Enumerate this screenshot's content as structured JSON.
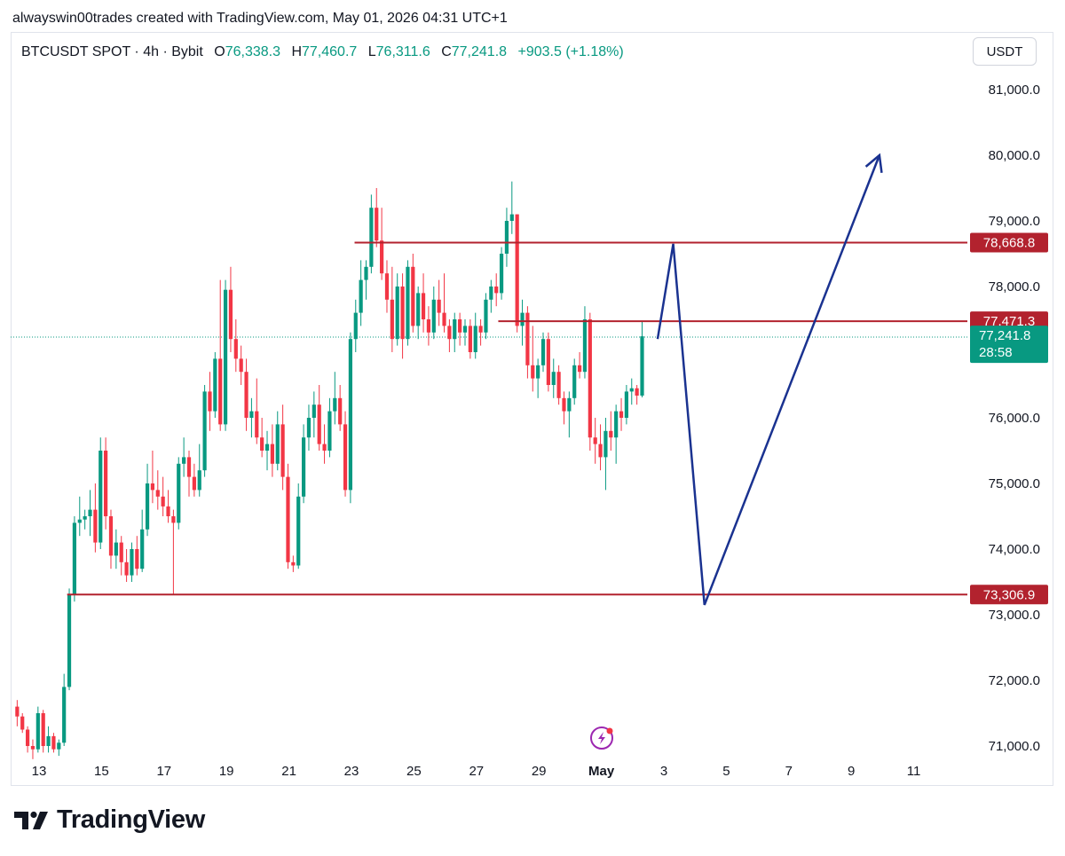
{
  "credit_line": "alwayswin00trades created with TradingView.com, May 01, 2026 04:31 UTC+1",
  "legend": {
    "symbol": "BTCUSDT SPOT · 4h · Bybit",
    "open_label": "O",
    "open": "76,338.3",
    "high_label": "H",
    "high": "77,460.7",
    "low_label": "L",
    "low": "76,311.6",
    "close_label": "C",
    "close": "77,241.8",
    "change": "+903.5 (+1.18%)"
  },
  "currency_button": "USDT",
  "brand": "TradingView",
  "colors": {
    "up": "#089981",
    "down": "#f23645",
    "level_line": "#b2222e",
    "projection": "#1a3290",
    "current_tag": "#089981"
  },
  "icons": [
    "tradingview-logo-icon",
    "flash-event-icon"
  ],
  "chart_data": {
    "type": "candlestick",
    "symbol": "BTCUSDT SPOT",
    "interval": "4h",
    "ylim": [
      70650,
      81700
    ],
    "y_ticks": [
      "81,000.0",
      "80,000.0",
      "79,000.0",
      "78,000.0",
      "76,000.0",
      "75,000.0",
      "74,000.0",
      "73,000.0",
      "72,000.0",
      "71,000.0"
    ],
    "y_tick_values": [
      81000,
      80000,
      79000,
      78000,
      76000,
      75000,
      74000,
      73000,
      72000,
      71000
    ],
    "x_ticks": [
      "13",
      "15",
      "17",
      "19",
      "21",
      "23",
      "25",
      "27",
      "29",
      "May",
      "3",
      "5",
      "7",
      "9",
      "11"
    ],
    "x_tick_days": [
      13,
      15,
      17,
      19,
      21,
      23,
      25,
      27,
      29,
      31,
      33,
      35,
      37,
      39,
      41
    ],
    "x_bold_tick": "May",
    "start_day": 12.3,
    "bar_step_days": 0.1667,
    "candles": [
      [
        71600,
        71700,
        71300,
        71450
      ],
      [
        71450,
        71500,
        71200,
        71250
      ],
      [
        71250,
        71300,
        70900,
        71000
      ],
      [
        71000,
        71100,
        70800,
        70950
      ],
      [
        70950,
        71600,
        70900,
        71500
      ],
      [
        71500,
        71550,
        70900,
        71000
      ],
      [
        71000,
        71300,
        70900,
        71150
      ],
      [
        71150,
        71200,
        70900,
        70950
      ],
      [
        70950,
        71100,
        70850,
        71050
      ],
      [
        71050,
        72100,
        71000,
        71900
      ],
      [
        71900,
        73400,
        71850,
        73300
      ],
      [
        73300,
        74500,
        73200,
        74400
      ],
      [
        74400,
        74800,
        74200,
        74450
      ],
      [
        74450,
        74600,
        74300,
        74500
      ],
      [
        74500,
        74900,
        74200,
        74600
      ],
      [
        74600,
        75000,
        73950,
        74100
      ],
      [
        74100,
        75700,
        74000,
        75500
      ],
      [
        75500,
        75700,
        74300,
        74500
      ],
      [
        74500,
        74600,
        73700,
        73900
      ],
      [
        73900,
        74300,
        73700,
        74100
      ],
      [
        74100,
        74200,
        73600,
        73800
      ],
      [
        73800,
        74000,
        73500,
        73600
      ],
      [
        73600,
        74100,
        73500,
        74000
      ],
      [
        74000,
        74200,
        73600,
        73700
      ],
      [
        73700,
        74600,
        73650,
        74300
      ],
      [
        74300,
        75300,
        74200,
        75000
      ],
      [
        75000,
        75500,
        74700,
        74900
      ],
      [
        74900,
        75200,
        74600,
        74800
      ],
      [
        74800,
        75100,
        74500,
        74650
      ],
      [
        74650,
        74900,
        74400,
        74500
      ],
      [
        74500,
        74600,
        73300,
        74400
      ],
      [
        74400,
        75400,
        74300,
        75300
      ],
      [
        75300,
        75700,
        75100,
        75400
      ],
      [
        75400,
        75500,
        74800,
        75100
      ],
      [
        75100,
        75300,
        74800,
        74900
      ],
      [
        74900,
        75600,
        74800,
        75200
      ],
      [
        75200,
        76500,
        75100,
        76400
      ],
      [
        76400,
        76700,
        75800,
        76100
      ],
      [
        76100,
        77000,
        76000,
        76900
      ],
      [
        76900,
        78100,
        75800,
        75900
      ],
      [
        75900,
        78100,
        75800,
        77950
      ],
      [
        77950,
        78300,
        77000,
        77200
      ],
      [
        77200,
        77500,
        76700,
        76900
      ],
      [
        76900,
        77100,
        76500,
        76700
      ],
      [
        76700,
        76900,
        75800,
        76000
      ],
      [
        76000,
        76300,
        75700,
        76100
      ],
      [
        76100,
        76600,
        75600,
        75700
      ],
      [
        75700,
        76000,
        75400,
        75500
      ],
      [
        75500,
        75800,
        75200,
        75600
      ],
      [
        75600,
        75900,
        75100,
        75300
      ],
      [
        75300,
        76100,
        75200,
        75900
      ],
      [
        75900,
        76200,
        74900,
        75100
      ],
      [
        75100,
        75300,
        73700,
        73800
      ],
      [
        73800,
        73900,
        73650,
        73750
      ],
      [
        73750,
        75000,
        73700,
        74800
      ],
      [
        74800,
        75900,
        74700,
        75700
      ],
      [
        75700,
        76200,
        75500,
        76000
      ],
      [
        76000,
        76400,
        75700,
        76200
      ],
      [
        76200,
        76500,
        75500,
        75600
      ],
      [
        75600,
        75900,
        75300,
        75500
      ],
      [
        75500,
        76300,
        75400,
        76100
      ],
      [
        76100,
        76700,
        75900,
        76300
      ],
      [
        76300,
        76500,
        75800,
        75900
      ],
      [
        75900,
        76100,
        74800,
        74900
      ],
      [
        74900,
        77300,
        74700,
        77200
      ],
      [
        77200,
        77800,
        77000,
        77600
      ],
      [
        77600,
        78400,
        77400,
        78100
      ],
      [
        78100,
        78400,
        77800,
        78300
      ],
      [
        78300,
        79400,
        78200,
        79200
      ],
      [
        79200,
        79500,
        78600,
        78700
      ],
      [
        78700,
        79200,
        78100,
        78200
      ],
      [
        78200,
        78400,
        77600,
        77800
      ],
      [
        77800,
        78300,
        77000,
        77200
      ],
      [
        77200,
        78200,
        77100,
        78000
      ],
      [
        78000,
        78200,
        76900,
        77200
      ],
      [
        77200,
        78400,
        77100,
        78300
      ],
      [
        78300,
        78500,
        77300,
        77400
      ],
      [
        77400,
        78000,
        77200,
        77900
      ],
      [
        77900,
        78200,
        77300,
        77500
      ],
      [
        77500,
        77700,
        77100,
        77300
      ],
      [
        77300,
        78000,
        77200,
        77800
      ],
      [
        77800,
        78100,
        77400,
        77600
      ],
      [
        77600,
        78200,
        77300,
        77400
      ],
      [
        77400,
        77500,
        77000,
        77200
      ],
      [
        77200,
        77600,
        77000,
        77500
      ],
      [
        77500,
        77600,
        77100,
        77300
      ],
      [
        77300,
        77500,
        77100,
        77400
      ],
      [
        77400,
        77500,
        76900,
        77000
      ],
      [
        77000,
        77600,
        76900,
        77400
      ],
      [
        77400,
        77500,
        77100,
        77300
      ],
      [
        77300,
        77900,
        77200,
        77800
      ],
      [
        77800,
        78100,
        77600,
        78000
      ],
      [
        78000,
        78200,
        77700,
        77900
      ],
      [
        77900,
        78600,
        77800,
        78500
      ],
      [
        78500,
        79200,
        78300,
        79000
      ],
      [
        79000,
        79600,
        78800,
        79100
      ],
      [
        79100,
        79100,
        77300,
        77400
      ],
      [
        77400,
        77800,
        77100,
        77600
      ],
      [
        77600,
        77700,
        76600,
        76800
      ],
      [
        76800,
        77400,
        76400,
        76600
      ],
      [
        76600,
        76900,
        76300,
        76800
      ],
      [
        76800,
        77300,
        76700,
        77200
      ],
      [
        77200,
        77300,
        76400,
        76500
      ],
      [
        76500,
        76900,
        76300,
        76700
      ],
      [
        76700,
        76800,
        76200,
        76300
      ],
      [
        76300,
        76400,
        75900,
        76100
      ],
      [
        76100,
        76400,
        75700,
        76300
      ],
      [
        76300,
        76900,
        76200,
        76800
      ],
      [
        76800,
        77000,
        76600,
        76700
      ],
      [
        76700,
        77700,
        76600,
        77500
      ],
      [
        77500,
        77600,
        75500,
        75700
      ],
      [
        75700,
        76000,
        75300,
        75600
      ],
      [
        75600,
        75900,
        75200,
        75400
      ],
      [
        75400,
        76000,
        74900,
        75800
      ],
      [
        75800,
        76100,
        75500,
        75700
      ],
      [
        75700,
        76200,
        75300,
        76100
      ],
      [
        76100,
        76300,
        75800,
        76000
      ],
      [
        76000,
        76500,
        75900,
        76400
      ],
      [
        76400,
        76600,
        76200,
        76450
      ],
      [
        76450,
        76500,
        76200,
        76338
      ],
      [
        76338.3,
        77460.7,
        76311.6,
        77241.8
      ]
    ],
    "levels": [
      {
        "label": "78,668.8",
        "value": 78668.8,
        "start_day": 23.1
      },
      {
        "label": "77,471.3",
        "value": 77471.3,
        "start_day": 27.7
      },
      {
        "label": "73,306.9",
        "value": 73306.9,
        "start_day": 13.9
      }
    ],
    "current_price": {
      "label": "77,241.8",
      "value": 77241.8,
      "countdown": "28:58"
    },
    "projection_path": [
      {
        "day": 32.8,
        "price": 77200
      },
      {
        "day": 33.3,
        "price": 78650
      },
      {
        "day": 34.3,
        "price": 73150
      },
      {
        "day": 39.9,
        "price": 80000
      }
    ]
  }
}
